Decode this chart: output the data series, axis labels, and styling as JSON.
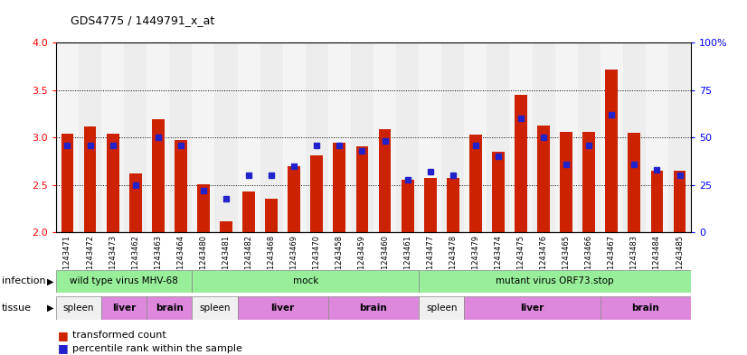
{
  "title": "GDS4775 / 1449791_x_at",
  "samples": [
    "GSM1243471",
    "GSM1243472",
    "GSM1243473",
    "GSM1243462",
    "GSM1243463",
    "GSM1243464",
    "GSM1243480",
    "GSM1243481",
    "GSM1243482",
    "GSM1243468",
    "GSM1243469",
    "GSM1243470",
    "GSM1243458",
    "GSM1243459",
    "GSM1243460",
    "GSM1243461",
    "GSM1243477",
    "GSM1243478",
    "GSM1243479",
    "GSM1243474",
    "GSM1243475",
    "GSM1243476",
    "GSM1243465",
    "GSM1243466",
    "GSM1243467",
    "GSM1243483",
    "GSM1243484",
    "GSM1243485"
  ],
  "red_values": [
    3.04,
    3.12,
    3.04,
    2.62,
    3.19,
    2.97,
    2.51,
    2.12,
    2.43,
    2.36,
    2.7,
    2.81,
    2.95,
    2.91,
    3.09,
    2.56,
    2.57,
    2.57,
    3.03,
    2.85,
    3.45,
    3.13,
    3.06,
    3.06,
    3.72,
    3.05,
    2.65,
    2.65
  ],
  "blue_values": [
    46,
    46,
    46,
    25,
    50,
    46,
    22,
    18,
    30,
    30,
    35,
    46,
    46,
    43,
    48,
    28,
    32,
    30,
    46,
    40,
    60,
    50,
    36,
    46,
    62,
    36,
    33,
    30
  ],
  "ylim_left": [
    2.0,
    4.0
  ],
  "ylim_right": [
    0,
    100
  ],
  "bar_color": "#cc2200",
  "dot_color": "#2222cc",
  "infection_groups": [
    {
      "label": "wild type virus MHV-68",
      "start": 0,
      "end": 6,
      "color": "#99ee99"
    },
    {
      "label": "mock",
      "start": 6,
      "end": 16,
      "color": "#99ee99"
    },
    {
      "label": "mutant virus ORF73.stop",
      "start": 16,
      "end": 28,
      "color": "#99ee99"
    }
  ],
  "tissue_groups": [
    {
      "label": "spleen",
      "start": 0,
      "end": 2,
      "color": "#f0f0f0"
    },
    {
      "label": "liver",
      "start": 2,
      "end": 4,
      "color": "#dd88dd"
    },
    {
      "label": "brain",
      "start": 4,
      "end": 6,
      "color": "#dd88dd"
    },
    {
      "label": "spleen",
      "start": 6,
      "end": 8,
      "color": "#f0f0f0"
    },
    {
      "label": "liver",
      "start": 8,
      "end": 12,
      "color": "#dd88dd"
    },
    {
      "label": "brain",
      "start": 12,
      "end": 16,
      "color": "#dd88dd"
    },
    {
      "label": "spleen",
      "start": 16,
      "end": 18,
      "color": "#f0f0f0"
    },
    {
      "label": "liver",
      "start": 18,
      "end": 24,
      "color": "#dd88dd"
    },
    {
      "label": "brain",
      "start": 24,
      "end": 28,
      "color": "#dd88dd"
    }
  ],
  "col_bg_even": "#e8e8e8",
  "col_bg_odd": "#d8d8d8",
  "legend_red_label": "transformed count",
  "legend_blue_label": "percentile rank within the sample",
  "infection_label": "infection",
  "tissue_label": "tissue"
}
